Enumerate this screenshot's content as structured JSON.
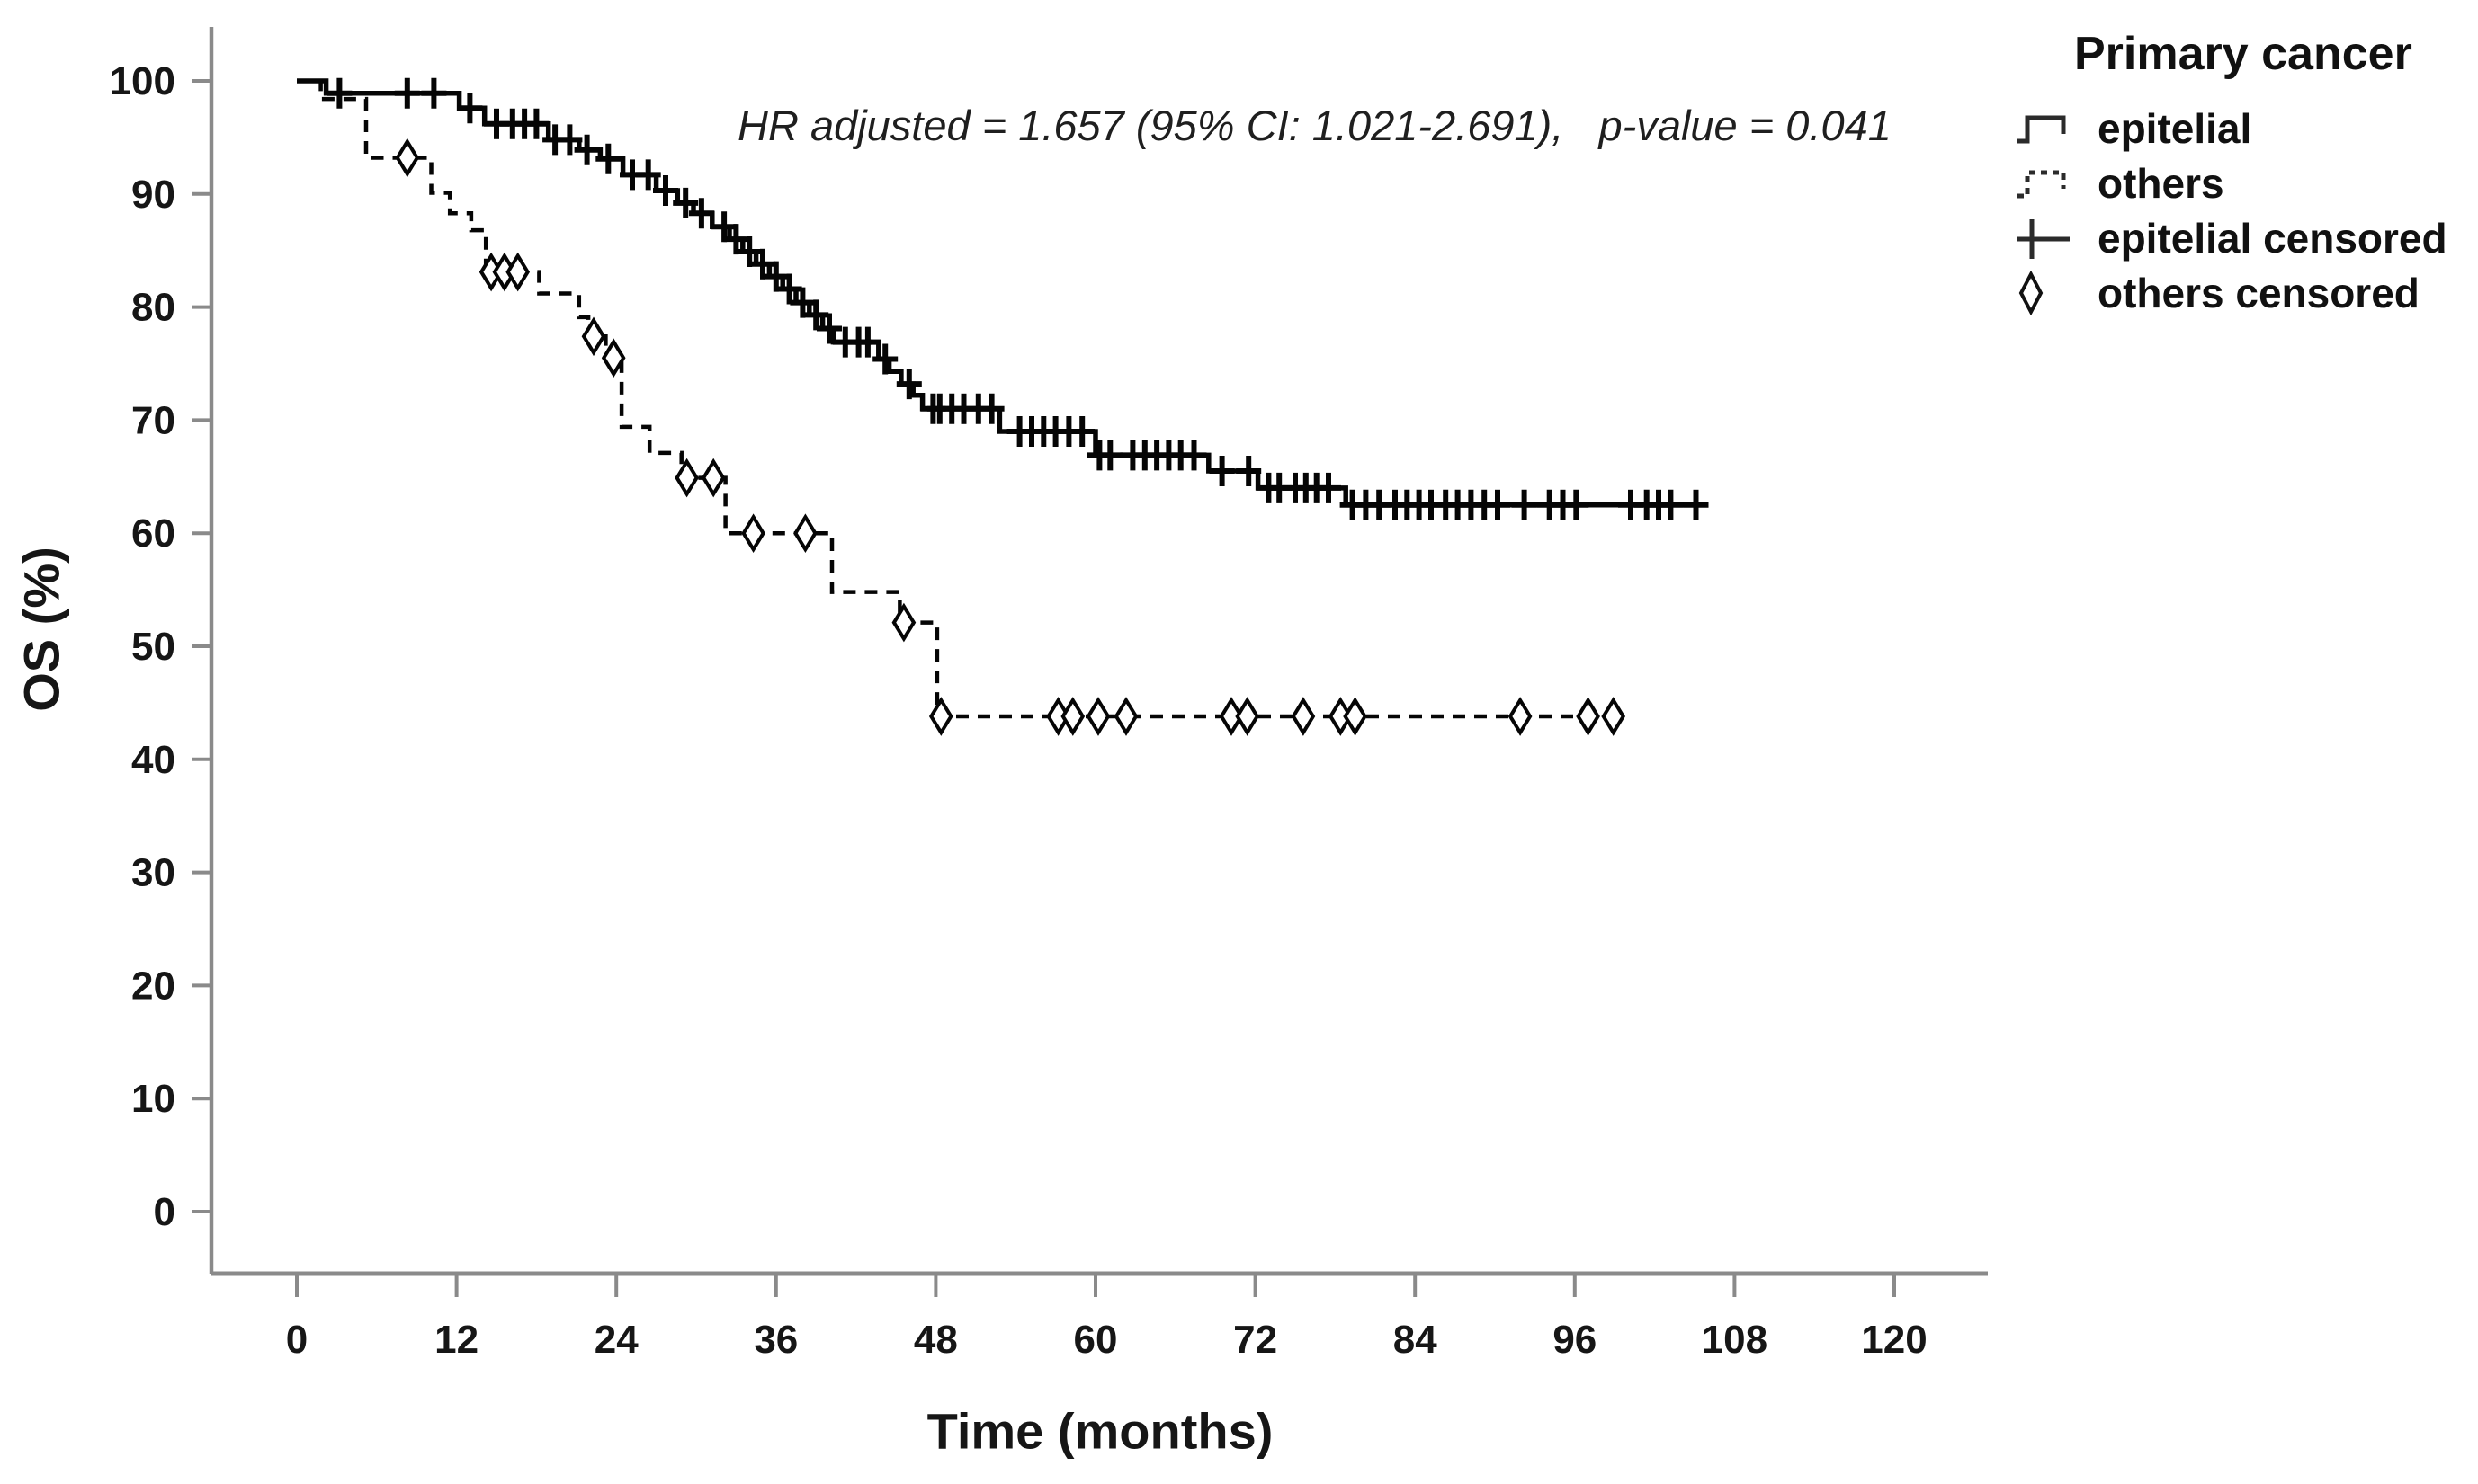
{
  "annotation": {
    "text": "HR adjusted = 1.657 (95% CI: 1.021-2.691),   p-value = 0.041"
  },
  "legend": {
    "title": "Primary cancer",
    "items": [
      {
        "label": "epitelial",
        "symbol": "solid-step-line"
      },
      {
        "label": "others",
        "symbol": "dashed-step-line"
      },
      {
        "label": "epitelial censored",
        "symbol": "plus-marker"
      },
      {
        "label": "others censored",
        "symbol": "diamond-marker"
      }
    ]
  },
  "colors": {
    "background": "#ffffff",
    "axis": "#8a8a8a",
    "curve": "#050505",
    "text": "#161616"
  },
  "chart_data": {
    "type": "line",
    "subtype": "kaplan-meier-step",
    "title": "",
    "xlabel": "Time (months)",
    "ylabel": "OS (%)",
    "xlim": [
      0,
      120
    ],
    "ylim": [
      0,
      100
    ],
    "xticks": [
      0,
      12,
      24,
      36,
      48,
      60,
      72,
      84,
      96,
      108,
      120
    ],
    "yticks": [
      0,
      10,
      20,
      30,
      40,
      50,
      60,
      70,
      80,
      90,
      100
    ],
    "grid": false,
    "legend_position": "outside-top-right",
    "hr_adjusted": 1.657,
    "ci_95": "1.021-2.691",
    "p_value": 0.041,
    "series": [
      {
        "name": "epitelial",
        "style": "solid",
        "color": "#050505",
        "steps": [
          [
            0,
            100
          ],
          [
            2.2,
            98.9
          ],
          [
            12.2,
            97.6
          ],
          [
            14.1,
            96.2
          ],
          [
            18.9,
            94.8
          ],
          [
            21.2,
            93.9
          ],
          [
            22.8,
            93.1
          ],
          [
            24.5,
            91.7
          ],
          [
            27,
            90.3
          ],
          [
            28.6,
            89.2
          ],
          [
            29.8,
            88.3
          ],
          [
            31.2,
            87.1
          ],
          [
            32.5,
            86
          ],
          [
            33.5,
            84.9
          ],
          [
            34.5,
            83.8
          ],
          [
            35.5,
            82.7
          ],
          [
            36.5,
            81.6
          ],
          [
            37.5,
            80.4
          ],
          [
            38.5,
            79.3
          ],
          [
            39.5,
            78.1
          ],
          [
            40.3,
            76.9
          ],
          [
            43.7,
            75.4
          ],
          [
            44.5,
            74.3
          ],
          [
            45.4,
            73.2
          ],
          [
            46.3,
            72.2
          ],
          [
            47,
            71
          ],
          [
            52.8,
            69
          ],
          [
            60,
            66.9
          ],
          [
            68.5,
            65.5
          ],
          [
            72.2,
            64
          ],
          [
            78.8,
            62.5
          ]
        ],
        "end_month": 106,
        "censored_months": [
          3.2,
          8.3,
          10.3,
          13,
          15,
          16.2,
          17.1,
          18,
          19.4,
          20.5,
          21.8,
          23.4,
          25.2,
          26.4,
          27.7,
          29.2,
          30.4,
          32.1,
          33,
          34,
          35,
          36,
          37,
          38,
          39,
          40,
          41.2,
          42.2,
          42.9,
          44.2,
          46,
          47.8,
          48.3,
          49.2,
          50.1,
          51.2,
          52.2,
          54.3,
          55.2,
          56.1,
          57,
          58,
          59,
          60.3,
          61.1,
          62.8,
          63.7,
          64.6,
          65.5,
          66.4,
          67.4,
          69.5,
          71.5,
          73,
          73.8,
          75,
          75.8,
          76.6,
          77.5,
          79.3,
          80.3,
          81.3,
          82.5,
          83.4,
          84.3,
          85.2,
          86.3,
          87.2,
          88.2,
          89.2,
          90.2,
          92.2,
          94.1,
          95.1,
          96.1,
          100.2,
          101.4,
          102.3,
          103.2,
          105.1
        ]
      },
      {
        "name": "others",
        "style": "dashed",
        "color": "#050505",
        "steps": [
          [
            0,
            100
          ],
          [
            1.8,
            98.4
          ],
          [
            5.2,
            93.2
          ],
          [
            10.1,
            90.1
          ],
          [
            11.5,
            88.3
          ],
          [
            13.1,
            86.8
          ],
          [
            14.2,
            83.1
          ],
          [
            18.2,
            81.2
          ],
          [
            21.2,
            79.1
          ],
          [
            21.9,
            77.4
          ],
          [
            23.2,
            75.5
          ],
          [
            24.4,
            69.4
          ],
          [
            26.5,
            67.1
          ],
          [
            28.9,
            64.9
          ],
          [
            32.2,
            60
          ],
          [
            40.2,
            54.8
          ],
          [
            45.3,
            52.1
          ],
          [
            48.1,
            43.8
          ]
        ],
        "end_month": 99.3,
        "censored_months": [
          8.3,
          14.6,
          15.6,
          16.6,
          22.3,
          23.8,
          29.3,
          31.3,
          34.3,
          38.2,
          45.6,
          48.4,
          57.2,
          58.3,
          60.2,
          62.3,
          70.2,
          71.4,
          75.6,
          78.4,
          79.5,
          91.9,
          97,
          98.9
        ]
      }
    ]
  }
}
